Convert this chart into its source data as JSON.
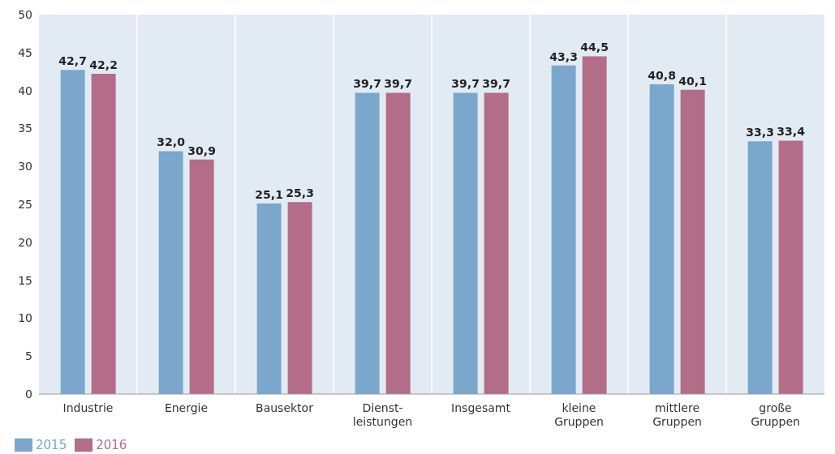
{
  "chart_data": {
    "type": "bar",
    "categories": [
      "Industrie",
      "Energie",
      "Bausektor",
      "Dienst-\nleistungen",
      "Insgesamt",
      "kleine\nGruppen",
      "mittlere\nGruppen",
      "große\nGruppen"
    ],
    "series": [
      {
        "name": "2015",
        "color": "#7aa7cb",
        "values": [
          42.7,
          32.0,
          25.1,
          39.7,
          39.7,
          43.3,
          40.8,
          33.3
        ],
        "value_labels": [
          "42,7",
          "32,0",
          "25,1",
          "39,7",
          "39,7",
          "43,3",
          "40,8",
          "33,3"
        ]
      },
      {
        "name": "2016",
        "color": "#b36d89",
        "values": [
          42.2,
          30.9,
          25.3,
          39.7,
          39.7,
          44.5,
          40.1,
          33.4
        ],
        "value_labels": [
          "42,2",
          "30,9",
          "25,3",
          "39,7",
          "39,7",
          "44,5",
          "40,1",
          "33,4"
        ]
      }
    ],
    "ylim": [
      0,
      50
    ],
    "yticks": [
      0,
      5,
      10,
      15,
      20,
      25,
      30,
      35,
      40,
      45,
      50
    ],
    "grid": "x",
    "legend": "bottom left"
  }
}
